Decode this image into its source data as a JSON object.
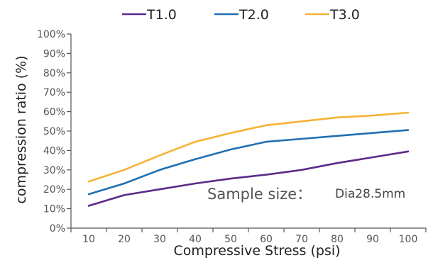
{
  "chart_data": {
    "type": "line",
    "xlabel": "Compressive Stress (psi)",
    "ylabel": "compression ratio (%)",
    "x": [
      10,
      20,
      30,
      40,
      50,
      60,
      70,
      80,
      90,
      100
    ],
    "x_tick_labels": [
      "10",
      "20",
      "30",
      "40",
      "50",
      "60",
      "70",
      "80",
      "90",
      "100"
    ],
    "y_tick_labels": [
      "0%",
      "10%",
      "20%",
      "30%",
      "40%",
      "50%",
      "60%",
      "70%",
      "80%",
      "90%",
      "100%"
    ],
    "xlim": [
      5,
      105
    ],
    "ylim": [
      0,
      100
    ],
    "grid": false,
    "legend_position": "top-center",
    "series": [
      {
        "name": "T1.0",
        "color": "#5b2a86",
        "values": [
          11.5,
          17,
          20,
          23,
          25.5,
          27.5,
          30,
          33.5,
          36.5,
          39.5
        ]
      },
      {
        "name": "T2.0",
        "color": "#1f6fb2",
        "values": [
          17.5,
          23,
          30,
          35.5,
          40.5,
          44.5,
          46,
          47.5,
          49,
          50.5
        ]
      },
      {
        "name": "T3.0",
        "color": "#f5b335",
        "values": [
          24,
          30,
          37.5,
          44.5,
          49,
          53,
          55,
          57,
          58,
          59.5
        ]
      }
    ],
    "annotation": {
      "label": "Sample size：",
      "value": "Dia28.5mm"
    }
  }
}
